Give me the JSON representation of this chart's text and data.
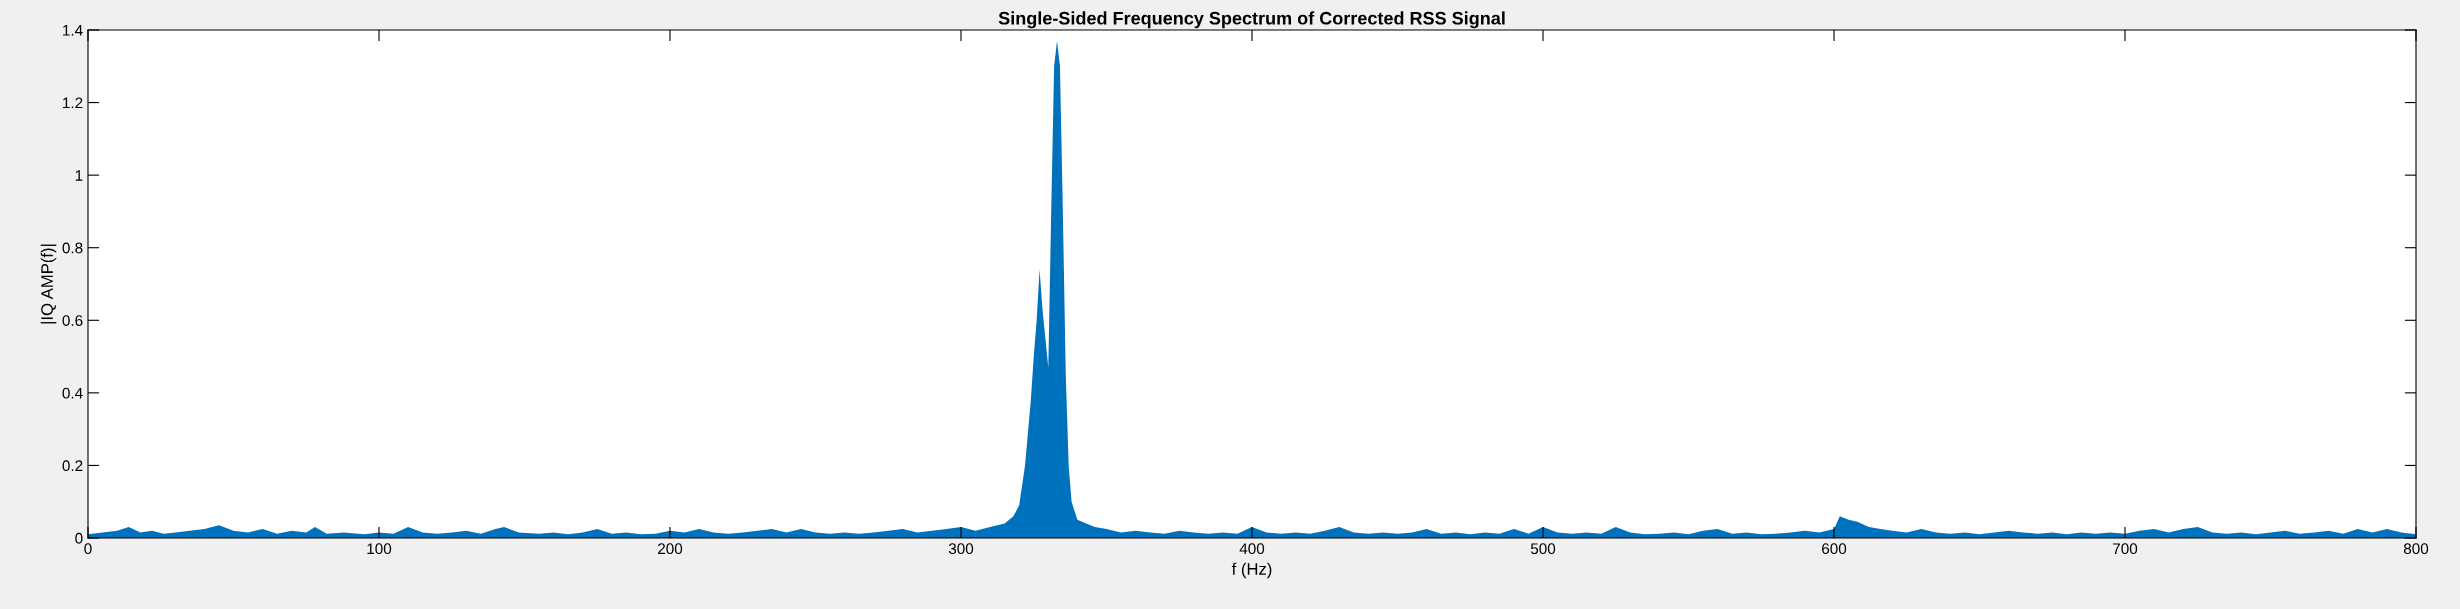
{
  "chart_data": {
    "type": "area",
    "title": "Single-Sided Frequency Spectrum of Corrected RSS Signal",
    "xlabel": "f (Hz)",
    "ylabel": "|IQ AMP(f)|",
    "x": [
      0,
      5,
      10,
      14,
      18,
      22,
      26,
      30,
      35,
      40,
      45,
      50,
      55,
      60,
      65,
      70,
      75,
      78,
      82,
      88,
      95,
      100,
      105,
      110,
      115,
      120,
      125,
      130,
      135,
      140,
      143,
      148,
      155,
      160,
      165,
      170,
      175,
      180,
      185,
      190,
      195,
      200,
      205,
      210,
      215,
      220,
      225,
      230,
      235,
      240,
      245,
      250,
      255,
      260,
      265,
      270,
      275,
      280,
      285,
      290,
      295,
      300,
      305,
      310,
      315,
      318,
      320,
      322,
      324,
      325,
      326,
      327,
      328,
      329,
      330,
      331,
      332,
      333,
      334,
      335,
      336,
      337,
      338,
      340,
      343,
      346,
      350,
      355,
      360,
      365,
      370,
      375,
      380,
      385,
      390,
      395,
      400,
      405,
      410,
      415,
      420,
      425,
      430,
      435,
      440,
      445,
      450,
      455,
      460,
      465,
      470,
      475,
      480,
      485,
      490,
      495,
      500,
      505,
      510,
      515,
      520,
      525,
      530,
      535,
      540,
      545,
      550,
      555,
      560,
      565,
      570,
      575,
      580,
      585,
      590,
      595,
      600,
      602,
      605,
      608,
      612,
      616,
      620,
      625,
      630,
      635,
      640,
      645,
      650,
      655,
      660,
      665,
      670,
      675,
      680,
      685,
      690,
      695,
      700,
      705,
      710,
      715,
      720,
      725,
      730,
      735,
      740,
      745,
      750,
      755,
      760,
      765,
      770,
      775,
      780,
      785,
      790,
      795,
      800
    ],
    "series": [
      {
        "color": "#0072bd",
        "values": [
          0.01,
          0.015,
          0.02,
          0.03,
          0.015,
          0.02,
          0.012,
          0.015,
          0.02,
          0.025,
          0.035,
          0.02,
          0.015,
          0.025,
          0.012,
          0.02,
          0.015,
          0.03,
          0.012,
          0.015,
          0.01,
          0.015,
          0.012,
          0.03,
          0.015,
          0.012,
          0.015,
          0.02,
          0.012,
          0.025,
          0.03,
          0.015,
          0.012,
          0.015,
          0.01,
          0.015,
          0.025,
          0.012,
          0.015,
          0.01,
          0.012,
          0.02,
          0.015,
          0.025,
          0.015,
          0.012,
          0.015,
          0.02,
          0.025,
          0.015,
          0.025,
          0.015,
          0.012,
          0.015,
          0.012,
          0.015,
          0.02,
          0.025,
          0.015,
          0.02,
          0.025,
          0.03,
          0.02,
          0.03,
          0.04,
          0.06,
          0.09,
          0.2,
          0.38,
          0.5,
          0.6,
          0.74,
          0.63,
          0.55,
          0.47,
          0.9,
          1.3,
          1.37,
          1.3,
          0.9,
          0.45,
          0.2,
          0.1,
          0.05,
          0.04,
          0.03,
          0.025,
          0.015,
          0.02,
          0.015,
          0.012,
          0.02,
          0.015,
          0.012,
          0.015,
          0.012,
          0.03,
          0.015,
          0.012,
          0.015,
          0.012,
          0.02,
          0.03,
          0.015,
          0.012,
          0.015,
          0.012,
          0.015,
          0.025,
          0.012,
          0.015,
          0.01,
          0.015,
          0.012,
          0.025,
          0.012,
          0.03,
          0.015,
          0.012,
          0.015,
          0.012,
          0.03,
          0.015,
          0.01,
          0.012,
          0.015,
          0.01,
          0.02,
          0.025,
          0.012,
          0.015,
          0.01,
          0.012,
          0.015,
          0.02,
          0.015,
          0.025,
          0.06,
          0.05,
          0.045,
          0.03,
          0.025,
          0.02,
          0.015,
          0.025,
          0.015,
          0.012,
          0.015,
          0.01,
          0.015,
          0.02,
          0.015,
          0.012,
          0.015,
          0.01,
          0.015,
          0.012,
          0.015,
          0.012,
          0.02,
          0.025,
          0.015,
          0.025,
          0.03,
          0.015,
          0.012,
          0.015,
          0.01,
          0.015,
          0.02,
          0.012,
          0.015,
          0.02,
          0.012,
          0.025,
          0.015,
          0.025,
          0.015,
          0.01
        ]
      }
    ],
    "xlim": [
      0,
      800
    ],
    "xticks": [
      0,
      100,
      200,
      300,
      400,
      500,
      600,
      700,
      800
    ],
    "ylim": [
      0,
      1.4
    ],
    "yticks": [
      0,
      0.2,
      0.4,
      0.6,
      0.8,
      1,
      1.2,
      1.4
    ],
    "grid": false
  }
}
